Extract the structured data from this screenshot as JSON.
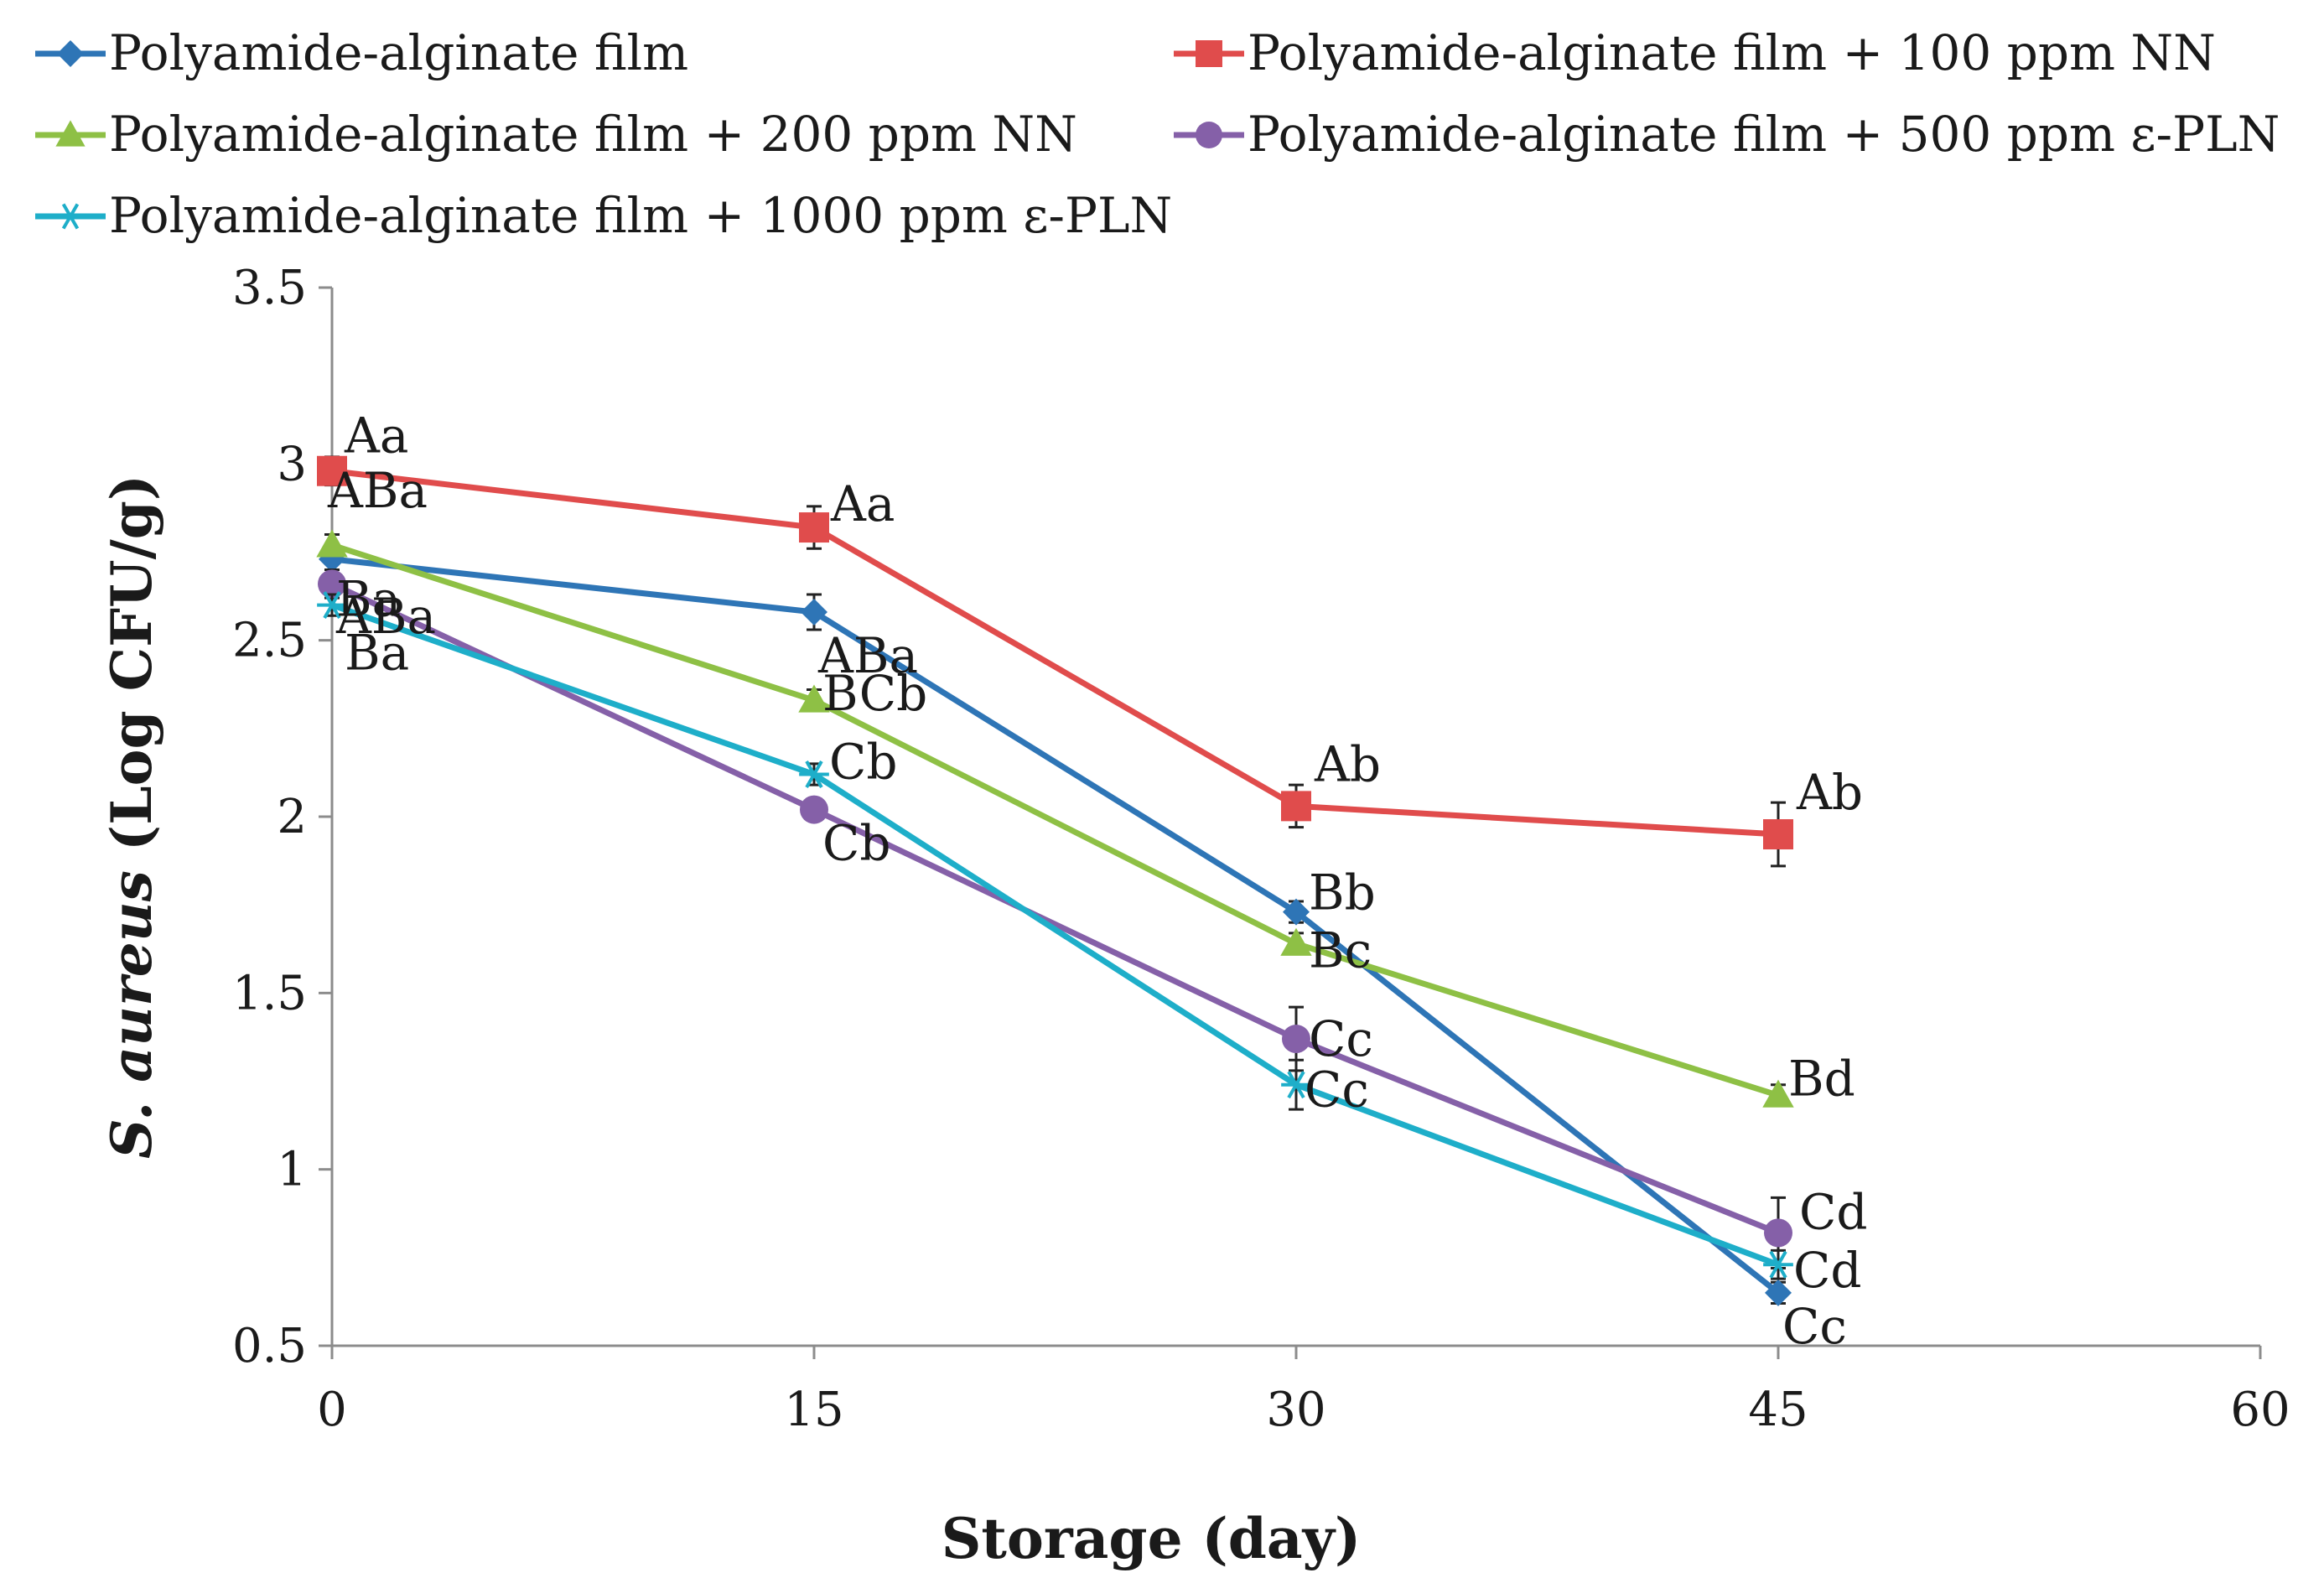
{
  "chart_data": {
    "type": "line",
    "title": "",
    "xlabel": "Storage (day)",
    "ylabel_italic": "S. aureus",
    "ylabel_rest": " (Log CFU/g)",
    "xlim": [
      0,
      60
    ],
    "ylim": [
      0.5,
      3.5
    ],
    "xticks": [
      "0",
      "15",
      "30",
      "45",
      "60"
    ],
    "yticks": [
      "0.5",
      "1",
      "1.5",
      "2",
      "2.5",
      "3",
      "3.5"
    ],
    "x": [
      0,
      15,
      30,
      45
    ],
    "grid": false,
    "legend_position": "top",
    "series": [
      {
        "name": "Polyamide-alginate film",
        "color": "#2e75b6",
        "marker": "diamond",
        "values": [
          2.73,
          2.58,
          1.73,
          0.65
        ],
        "errors": [
          0.04,
          0.05,
          0.03,
          0.03
        ],
        "labels": [
          "ABa",
          "ABa",
          "Bb",
          "Cc"
        ]
      },
      {
        "name": "Polyamide-alginate film + 100 ppm NN",
        "color": "#e04c4c",
        "marker": "square",
        "values": [
          2.98,
          2.82,
          2.03,
          1.95
        ],
        "errors": [
          0.04,
          0.06,
          0.06,
          0.09
        ],
        "labels": [
          "Aa",
          "Aa",
          "Ab",
          "Ab"
        ]
      },
      {
        "name": "Polyamide-alginate film + 200 ppm NN",
        "color": "#8ec045",
        "marker": "triangle",
        "values": [
          2.77,
          2.33,
          1.64,
          1.21
        ],
        "errors": [
          0.03,
          0.03,
          0.03,
          0.03
        ],
        "labels": [
          "ABa",
          "BCb",
          "Bc",
          "Bd"
        ]
      },
      {
        "name": "Polyamide-alginate film + 500 ppm ε-PLN",
        "color": "#8560a8",
        "marker": "circle",
        "values": [
          2.66,
          2.02,
          1.37,
          0.82
        ],
        "errors": [
          0.04,
          0.03,
          0.09,
          0.1
        ],
        "labels": [
          "Ba",
          "Cb",
          "Cc",
          "Cd"
        ]
      },
      {
        "name": "Polyamide-alginate film + 1000 ppm ε-PLN",
        "color": "#1eaec9",
        "marker": "star",
        "values": [
          2.6,
          2.12,
          1.24,
          0.73
        ],
        "errors": [
          0.03,
          0.03,
          0.07,
          0.04
        ],
        "labels": [
          "Ba",
          "Cb",
          "Cc",
          "Cd"
        ]
      }
    ]
  }
}
